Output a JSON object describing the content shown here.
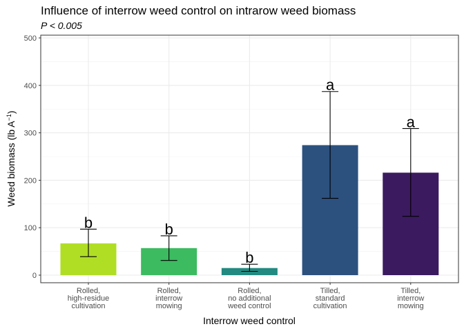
{
  "chart_data": {
    "type": "bar",
    "title": "Influence of interrow weed control on intrarow weed biomass",
    "subtitle": "P < 0.005",
    "xlabel": "Interrow weed control",
    "ylabel": "Weed biomass (lb A",
    "ylabel_sup": "−1",
    "ylabel_end": ")",
    "ylim": [
      0,
      500
    ],
    "yticks": [
      0,
      100,
      200,
      300,
      400,
      500
    ],
    "grid": true,
    "categories": [
      [
        "Rolled,",
        "high-residue",
        "cultivation"
      ],
      [
        "Rolled,",
        "interrow",
        "mowing"
      ],
      [
        "Rolled,",
        "no additional",
        "weed control"
      ],
      [
        "Tilled,",
        "standard",
        "cultivation"
      ],
      [
        "Tilled,",
        "interrow",
        "mowing"
      ]
    ],
    "values": [
      67,
      57,
      15,
      274,
      216
    ],
    "error_low": [
      39,
      31,
      8,
      162,
      124
    ],
    "error_high": [
      97,
      83,
      23,
      387,
      309
    ],
    "letters": [
      "b",
      "b",
      "b",
      "a",
      "a"
    ],
    "colors": [
      "#b0de25",
      "#3cbb61",
      "#228a80",
      "#2c517f",
      "#3b1a60"
    ]
  }
}
